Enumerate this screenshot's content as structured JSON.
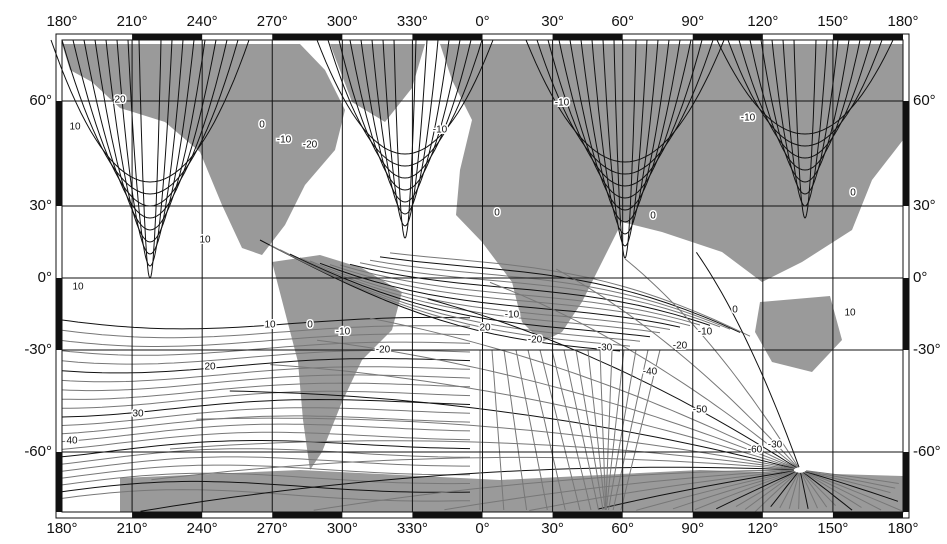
{
  "map": {
    "top_axis": [
      "180°",
      "210°",
      "240°",
      "270°",
      "300°",
      "330°",
      "0°",
      "30°",
      "60°",
      "90°",
      "120°",
      "150°",
      "180°"
    ],
    "bottom_axis": [
      "180°",
      "210°",
      "240°",
      "270°",
      "300°",
      "330°",
      "0°",
      "30°",
      "60°",
      "90°",
      "120°",
      "150°",
      "180°"
    ],
    "left_axis": [
      "60°",
      "30°",
      "0°",
      "-30°",
      "-60°"
    ],
    "right_axis": [
      "60°",
      "30°",
      "0°",
      "-30°",
      "-60°"
    ],
    "contour_labels": [
      "20",
      "10",
      "0",
      "-10",
      "-20",
      "-10",
      "10",
      "10",
      "0",
      "-10",
      "-10",
      "0",
      "0",
      "10",
      "0",
      "-10",
      "-20",
      "20",
      "-10",
      "-20",
      "-30",
      "-20",
      "-10",
      "0",
      "10",
      "20",
      "30",
      "-40",
      "-50",
      "40",
      "-60",
      "-30"
    ]
  }
}
